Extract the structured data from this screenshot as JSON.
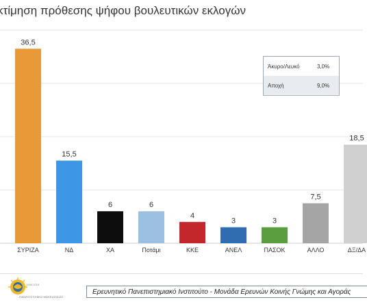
{
  "title": "κτίμηση πρόθεσης ψήφου βουλευτικών εκλογών",
  "colors": {
    "ΣΥΡΙΖΑ": "#e89a38",
    "ΝΔ": "#3d97e6",
    "ΧΑ": "#0d0d0d",
    "Ποτάμι": "#9bc0e2",
    "ΚΚΕ": "#c4262e",
    "ΑΝΕΛ": "#2f6db0",
    "ΠΑΣΟΚ": "#5a9e3f",
    "ΑΛΛΟ": "#a5a5a5",
    "ΔΞ/ΔΑ": "#d0d0d0"
  },
  "chart_data": {
    "type": "bar",
    "categories": [
      "ΣΥΡΙΖΑ",
      "ΝΔ",
      "ΧΑ",
      "Ποτάμι",
      "ΚΚΕ",
      "ΑΝΕΛ",
      "ΠΑΣΟΚ",
      "ΑΛΛΟ",
      "ΔΞ/ΔΑ"
    ],
    "values": [
      36.5,
      15.5,
      6,
      6,
      4,
      3,
      3,
      7.5,
      18.5
    ],
    "value_labels": [
      "36,5",
      "15,5",
      "6",
      "6",
      "4",
      "3",
      "3",
      "7,5",
      "18,5"
    ],
    "ylim": [
      0,
      40
    ],
    "grid": true
  },
  "legend_table": [
    {
      "label": "Άκυρο/Λευκό",
      "value": "3,0%"
    },
    {
      "label": "Αποχή",
      "value": "9,0%"
    }
  ],
  "footer": {
    "institute": "Ερευνητικό Πανεπιστημιακό Ινστιτούτο - Μονάδα Ερευνών Κοινής Γνώμης και Αγοράς",
    "logo_caption": "ΠΑΝΕΠΙΣΤΗΜΙΟ ΜΑΚΕΔΟΝΙΑΣ",
    "logo_year": "1948-2018"
  }
}
